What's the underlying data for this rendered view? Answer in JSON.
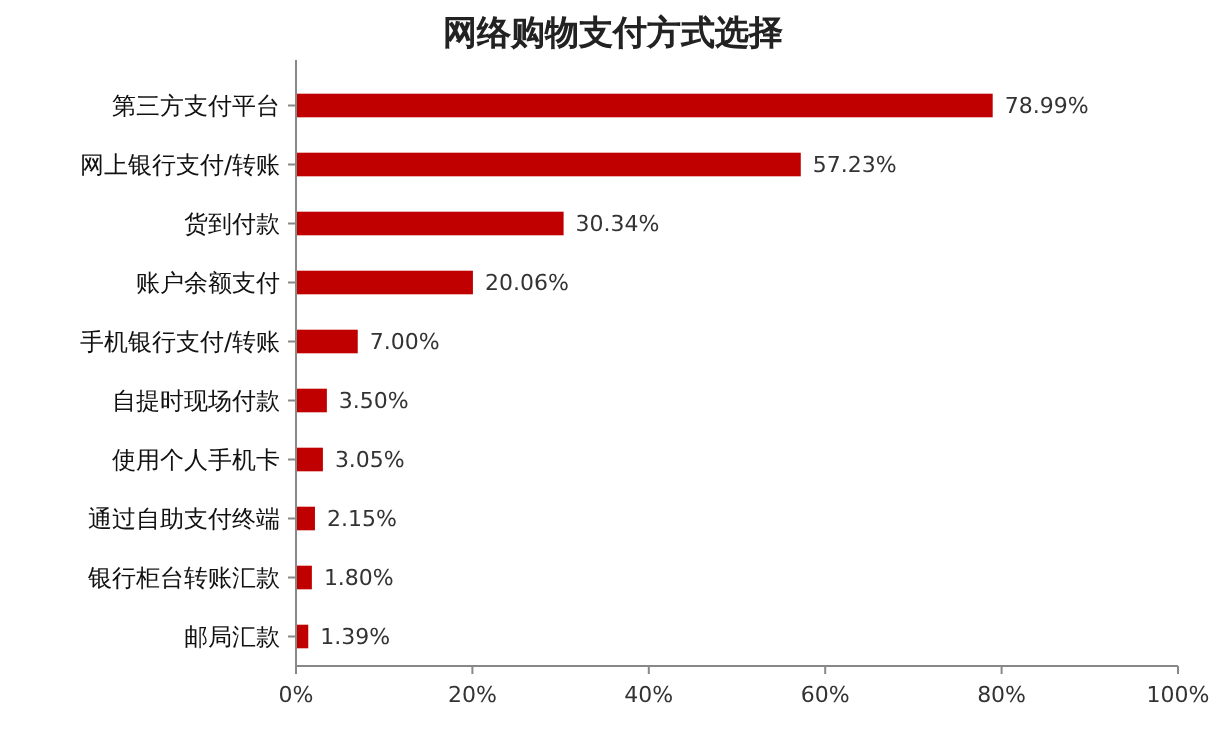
{
  "chart_data": {
    "type": "bar",
    "orientation": "horizontal",
    "title": "网络购物支付方式选择",
    "categories": [
      "第三方支付平台",
      "网上银行支付/转账",
      "货到付款",
      "账户余额支付",
      "手机银行支付/转账",
      "自提时现场付款",
      "使用个人手机卡",
      "通过自助支付终端",
      "银行柜台转账汇款",
      "邮局汇款"
    ],
    "values": [
      78.99,
      57.23,
      30.34,
      20.06,
      7.0,
      3.5,
      3.05,
      2.15,
      1.8,
      1.39
    ],
    "value_labels": [
      "78.99%",
      "57.23%",
      "30.34%",
      "20.06%",
      "7.00%",
      "3.50%",
      "3.05%",
      "2.15%",
      "1.80%",
      "1.39%"
    ],
    "color": "#c00000",
    "xlim": [
      0,
      100
    ],
    "xticks": [
      {
        "value": 0,
        "label": "0%"
      },
      {
        "value": 20,
        "label": "20%"
      },
      {
        "value": 40,
        "label": "40%"
      },
      {
        "value": 60,
        "label": "60%"
      },
      {
        "value": 80,
        "label": "80%"
      },
      {
        "value": 100,
        "label": "100%"
      }
    ],
    "grid": false
  }
}
